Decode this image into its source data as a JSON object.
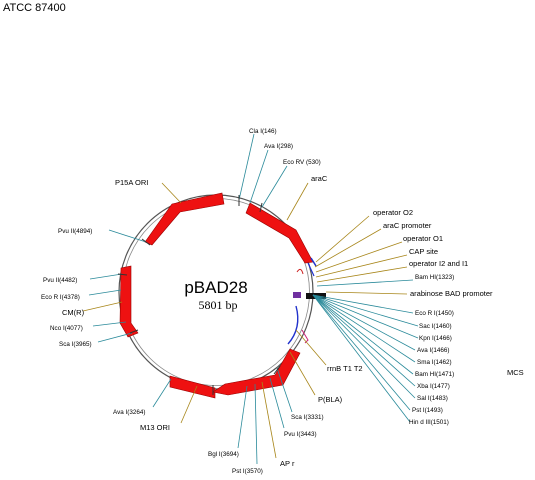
{
  "header": "ATCC 87400",
  "plasmid": {
    "name": "pBAD28",
    "size": "5801 bp"
  },
  "colors": {
    "feature": "#ee1111",
    "line_teal": "#2a8a9a",
    "line_gold": "#a8861a",
    "marker_black": "#111111",
    "marker_purple": "#7030a0",
    "marker_blue": "#2233cc",
    "marker_pink": "#cc2277"
  },
  "labels": {
    "top": [
      {
        "text": "Cla  I(146)",
        "kind": "site"
      },
      {
        "text": "Ava  I(298)",
        "kind": "site"
      },
      {
        "text": "Eco  RV (530)",
        "kind": "site"
      },
      {
        "text": "araC",
        "kind": "feature"
      }
    ],
    "right_upper": [
      {
        "text": "operator O2",
        "kind": "feature"
      },
      {
        "text": "araC promoter",
        "kind": "feature"
      },
      {
        "text": "operator O1",
        "kind": "feature"
      },
      {
        "text": "CAP site",
        "kind": "feature"
      },
      {
        "text": "operator I2 and I1",
        "kind": "feature"
      },
      {
        "text": "Bam HI(1323)",
        "kind": "site"
      },
      {
        "text": "arabinose BAD promoter",
        "kind": "feature"
      }
    ],
    "mcs": [
      {
        "text": "Eco  R I(1450)",
        "kind": "site"
      },
      {
        "text": "Sac  I(1460)",
        "kind": "site"
      },
      {
        "text": "Kpn  I(1466)",
        "kind": "site"
      },
      {
        "text": "Ava  I(1466)",
        "kind": "site"
      },
      {
        "text": "Sma  I(1462)",
        "kind": "site"
      },
      {
        "text": "Bam HI(1471)",
        "kind": "site"
      },
      {
        "text": "Xba  I(1477)",
        "kind": "site"
      },
      {
        "text": "Sal  I(1483)",
        "kind": "site"
      },
      {
        "text": "Pst  I(1493)",
        "kind": "site"
      },
      {
        "text": "Hin d III(1501)",
        "kind": "site"
      }
    ],
    "mcs_label": "MCS",
    "right_lower": [
      {
        "text": "rrnB T1 T2",
        "kind": "feature"
      },
      {
        "text": "P(BLA)",
        "kind": "feature"
      }
    ],
    "bottom": [
      {
        "text": "Sca  I(3331)",
        "kind": "site"
      },
      {
        "text": "Pvu  I(3443)",
        "kind": "site"
      },
      {
        "text": "AP r",
        "kind": "feature"
      },
      {
        "text": "Pst  I(3570)",
        "kind": "site"
      },
      {
        "text": "Bgl  I(3694)",
        "kind": "site"
      },
      {
        "text": "M13 ORI",
        "kind": "feature"
      },
      {
        "text": "Ava  I(3264)",
        "kind": "site"
      }
    ],
    "left": [
      {
        "text": "Sca  I(3965)",
        "kind": "site"
      },
      {
        "text": "Nco  I(4077)",
        "kind": "site"
      },
      {
        "text": "CM(R)",
        "kind": "feature"
      },
      {
        "text": "Eco  R I(4378)",
        "kind": "site"
      },
      {
        "text": "Pvu  II(4482)",
        "kind": "site"
      },
      {
        "text": "Pvu  II(4894)",
        "kind": "site"
      },
      {
        "text": "P15A ORI",
        "kind": "feature"
      }
    ]
  }
}
